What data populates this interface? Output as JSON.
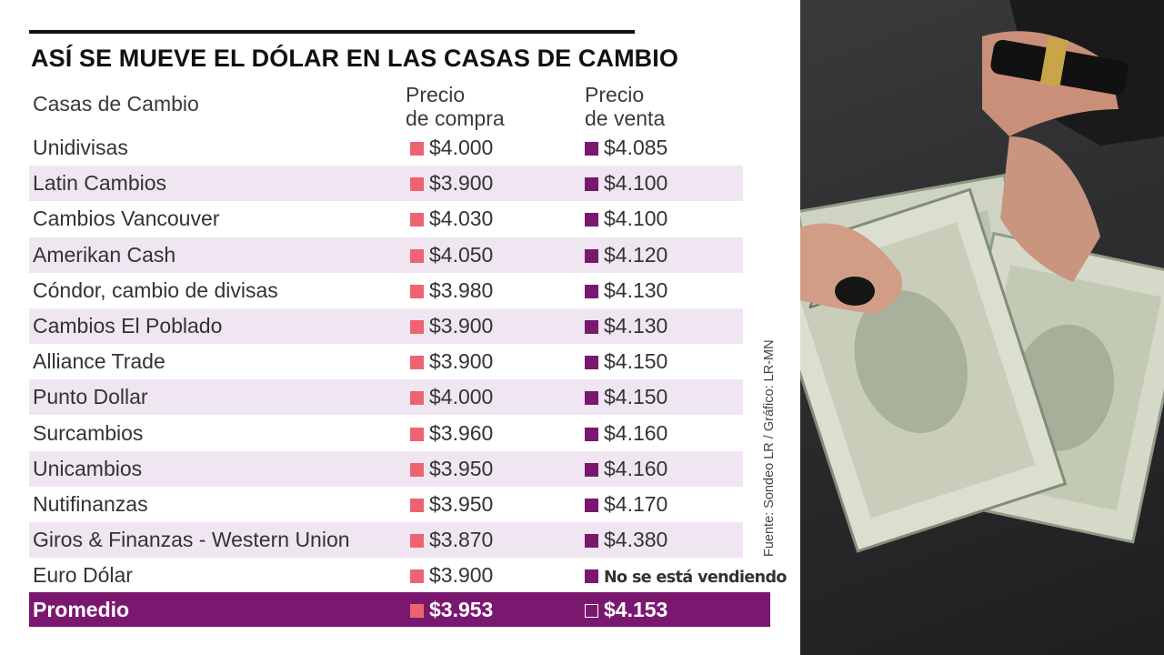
{
  "title": "ASÍ SE MUEVE EL DÓLAR EN LAS CASAS DE CAMBIO",
  "columns": {
    "casas": "Casas de Cambio",
    "compra_line1": "Precio",
    "compra_line2": "de compra",
    "venta_line1": "Precio",
    "venta_line2": "de venta"
  },
  "rows": [
    {
      "name": "Unidivisas",
      "buy": "$4.000",
      "sell": "$4.085"
    },
    {
      "name": "Latin Cambios",
      "buy": "$3.900",
      "sell": "$4.100"
    },
    {
      "name": "Cambios Vancouver",
      "buy": "$4.030",
      "sell": "$4.100"
    },
    {
      "name": "Amerikan Cash",
      "buy": "$4.050",
      "sell": "$4.120"
    },
    {
      "name": "Cóndor, cambio de divisas",
      "buy": "$3.980",
      "sell": "$4.130"
    },
    {
      "name": "Cambios El Poblado",
      "buy": "$3.900",
      "sell": "$4.130"
    },
    {
      "name": "Alliance Trade",
      "buy": "$3.900",
      "sell": "$4.150"
    },
    {
      "name": "Punto Dollar",
      "buy": "$4.000",
      "sell": "$4.150"
    },
    {
      "name": "Surcambios",
      "buy": "$3.960",
      "sell": "$4.160"
    },
    {
      "name": "Unicambios",
      "buy": "$3.950",
      "sell": "$4.160"
    },
    {
      "name": "Nutifinanzas",
      "buy": "$3.950",
      "sell": "$4.170"
    },
    {
      "name": "Giros & Finanzas - Western Union",
      "buy": "$3.870",
      "sell": "$4.380"
    },
    {
      "name": "Euro Dólar",
      "buy": "$3.900",
      "sell": "No se está vendiendo"
    }
  ],
  "total": {
    "name": "Promedio",
    "buy": "$3.953",
    "sell": "$4.153"
  },
  "source": "Fuente: Sondeo LR / Gráfico: LR-MN",
  "colors": {
    "accent_purple": "#7a1870",
    "buy_marker_pink": "#ee6372",
    "row_stripe": "#efe6f2"
  },
  "photo": {
    "icon": "hands-counting-us-dollar-bills-photo"
  }
}
